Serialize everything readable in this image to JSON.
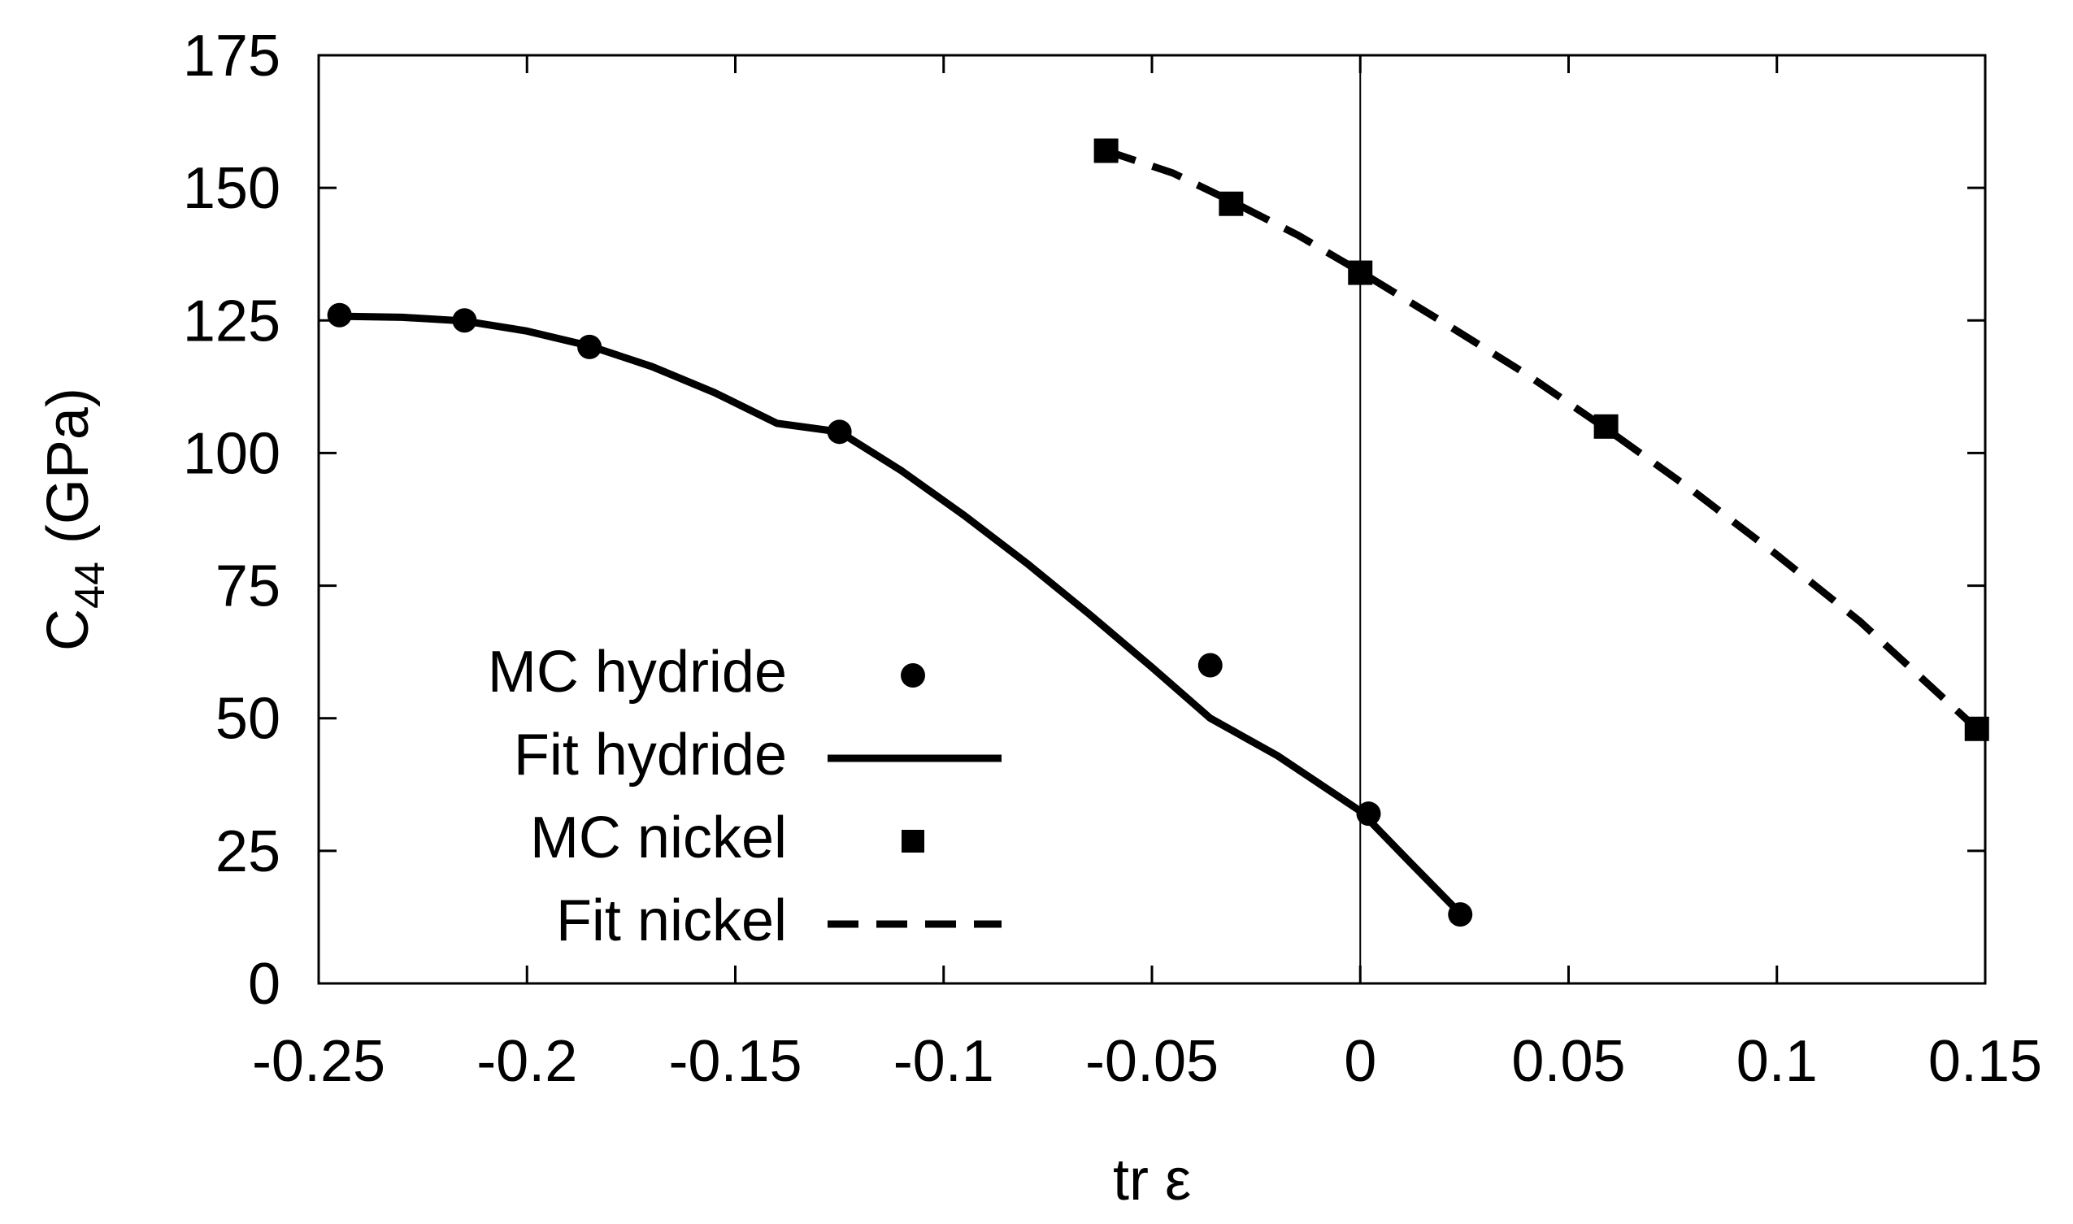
{
  "chart_data": {
    "type": "line",
    "xlabel": "tr ε",
    "ylabel_main": "C",
    "ylabel_sub": "44",
    "ylabel_unit": "(GPa)",
    "xlim": [
      -0.25,
      0.15
    ],
    "ylim": [
      0,
      175
    ],
    "xticks": [
      -0.25,
      -0.2,
      -0.15,
      -0.1,
      -0.05,
      0,
      0.05,
      0.1,
      0.15
    ],
    "xtick_labels": [
      "-0.25",
      "-0.2",
      "-0.15",
      "-0.1",
      "-0.05",
      "0",
      "0.05",
      "0.1",
      "0.15"
    ],
    "yticks": [
      0,
      25,
      50,
      75,
      100,
      125,
      150,
      175
    ],
    "ytick_labels": [
      "0",
      "25",
      "50",
      "75",
      "100",
      "125",
      "150",
      "175"
    ],
    "zero_line_x": 0,
    "legend_position": "bottom-left",
    "series": [
      {
        "name": "MC hydride",
        "style": "points",
        "marker": "circle",
        "x": [
          -0.245,
          -0.215,
          -0.185,
          -0.125,
          -0.036,
          0.002,
          0.024
        ],
        "y": [
          126,
          125,
          120,
          104,
          60,
          32,
          13
        ]
      },
      {
        "name": "Fit hydride",
        "style": "solid",
        "x": [
          -0.245,
          -0.23,
          -0.215,
          -0.2,
          -0.185,
          -0.17,
          -0.155,
          -0.14,
          -0.125,
          -0.11,
          -0.095,
          -0.08,
          -0.065,
          -0.05,
          -0.036,
          -0.02,
          0,
          0.012,
          0.024
        ],
        "y": [
          125.8,
          125.6,
          124.9,
          123,
          120.2,
          116.3,
          111.4,
          105.6,
          104,
          96.6,
          88.2,
          79.2,
          69.6,
          59.6,
          50,
          43,
          32.5,
          22.8,
          13.2
        ]
      },
      {
        "name": "MC nickel",
        "style": "points",
        "marker": "square",
        "x": [
          -0.061,
          -0.031,
          0,
          0.059,
          0.148
        ],
        "y": [
          157,
          147,
          134,
          105,
          48
        ]
      },
      {
        "name": "Fit nickel",
        "style": "dashed",
        "x": [
          -0.061,
          -0.045,
          -0.031,
          -0.015,
          0,
          0.02,
          0.04,
          0.059,
          0.08,
          0.1,
          0.12,
          0.148
        ],
        "y": [
          157,
          152.8,
          147.5,
          141.1,
          134.2,
          124.6,
          114.8,
          104.6,
          92.8,
          80.8,
          68.2,
          48
        ]
      }
    ]
  }
}
